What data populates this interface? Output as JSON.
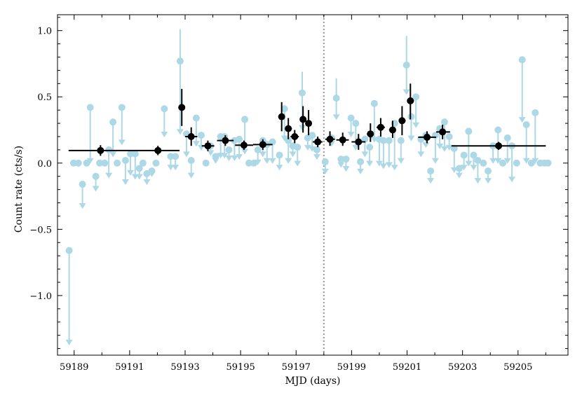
{
  "chart_data": {
    "type": "scatter",
    "title": "",
    "xlabel": "MJD (days)",
    "ylabel": "Count rate (cts/s)",
    "xlim": [
      59188.4,
      59206.8
    ],
    "ylim": [
      -1.45,
      1.12
    ],
    "xticks": [
      59189,
      59191,
      59193,
      59195,
      59197,
      59199,
      59201,
      59203,
      59205
    ],
    "yticks": [
      -1.0,
      -0.5,
      0.0,
      0.5,
      1.0
    ],
    "xtick_labels": [
      "59189",
      "59191",
      "59193",
      "59195",
      "59197",
      "59199",
      "59201",
      "59203",
      "59205"
    ],
    "ytick_labels": [
      "−1.0",
      "−0.5",
      "0.0",
      "0.5",
      "1.0"
    ],
    "vline": {
      "x": 59198.0,
      "style": "dotted",
      "color": "#999999"
    },
    "colors": {
      "fine": "#add8e6",
      "binned": "#000000"
    },
    "series": [
      {
        "role": "fine",
        "points": [
          {
            "x": 59188.82,
            "y": -0.66,
            "lo": -1.37
          },
          {
            "x": 59188.98,
            "y": 0.0
          },
          {
            "x": 59189.15,
            "y": 0.0
          },
          {
            "x": 59189.3,
            "y": -0.16,
            "lo": -0.34
          },
          {
            "x": 59189.45,
            "y": 0.0
          },
          {
            "x": 59189.58,
            "y": 0.42,
            "lo": 0.0
          },
          {
            "x": 59189.78,
            "y": -0.1,
            "lo": -0.21
          },
          {
            "x": 59189.92,
            "y": 0.0
          },
          {
            "x": 59190.1,
            "y": 0.0
          },
          {
            "x": 59190.25,
            "y": 0.1,
            "lo": -0.11
          },
          {
            "x": 59190.4,
            "y": 0.31,
            "lo": 0.05
          },
          {
            "x": 59190.55,
            "y": 0.0
          },
          {
            "x": 59190.72,
            "y": 0.42,
            "lo": 0.14
          },
          {
            "x": 59190.85,
            "y": 0.02,
            "lo": -0.16
          },
          {
            "x": 59191.03,
            "y": 0.07,
            "lo": -0.09
          },
          {
            "x": 59191.2,
            "y": 0.07,
            "lo": -0.12
          },
          {
            "x": 59191.35,
            "y": -0.04,
            "lo": -0.12
          },
          {
            "x": 59191.48,
            "y": 0.0
          },
          {
            "x": 59191.62,
            "y": -0.08,
            "lo": -0.16
          },
          {
            "x": 59191.8,
            "y": -0.06,
            "lo": -0.1
          },
          {
            "x": 59191.95,
            "y": 0.0
          },
          {
            "x": 59192.25,
            "y": 0.41,
            "lo": 0.2
          },
          {
            "x": 59192.48,
            "y": 0.05,
            "lo": -0.05
          },
          {
            "x": 59192.65,
            "y": 0.05,
            "lo": -0.05
          },
          {
            "x": 59192.82,
            "y": 0.77,
            "hi": 1.01,
            "lo": 0.22
          },
          {
            "x": 59193.05,
            "y": 0.22,
            "lo": 0.05
          },
          {
            "x": 59193.22,
            "y": 0.02,
            "lo": -0.11
          },
          {
            "x": 59193.4,
            "y": 0.34,
            "lo": 0.13
          },
          {
            "x": 59193.58,
            "y": 0.21,
            "lo": 0.1
          },
          {
            "x": 59193.75,
            "y": 0.0
          },
          {
            "x": 59193.92,
            "y": 0.13,
            "lo": 0.06
          },
          {
            "x": 59194.1,
            "y": 0.05,
            "lo": 0.0
          },
          {
            "x": 59194.28,
            "y": 0.2,
            "lo": 0.04
          },
          {
            "x": 59194.42,
            "y": 0.2,
            "lo": 0.04
          },
          {
            "x": 59194.58,
            "y": 0.1,
            "lo": 0.02
          },
          {
            "x": 59194.78,
            "y": 0.17,
            "lo": 0.02
          },
          {
            "x": 59194.95,
            "y": 0.18,
            "lo": 0.03
          },
          {
            "x": 59195.15,
            "y": 0.33,
            "lo": 0.07
          },
          {
            "x": 59195.3,
            "y": 0.0
          },
          {
            "x": 59195.48,
            "y": 0.0
          },
          {
            "x": 59195.62,
            "y": 0.1,
            "lo": -0.01
          },
          {
            "x": 59195.8,
            "y": 0.17,
            "lo": 0.05
          },
          {
            "x": 59195.95,
            "y": 0.14,
            "lo": 0.0
          },
          {
            "x": 59196.15,
            "y": 0.16,
            "lo": 0.0
          },
          {
            "x": 59196.4,
            "y": 0.06,
            "lo": -0.05
          },
          {
            "x": 59196.58,
            "y": 0.41,
            "lo": 0.17
          },
          {
            "x": 59196.72,
            "y": 0.17,
            "lo": 0.0
          },
          {
            "x": 59196.88,
            "y": 0.13,
            "lo": 0.05
          },
          {
            "x": 59197.05,
            "y": 0.12,
            "lo": -0.02
          },
          {
            "x": 59197.22,
            "y": 0.53,
            "hi": 0.69,
            "lo": 0.25
          },
          {
            "x": 59197.42,
            "y": 0.19,
            "lo": 0.1
          },
          {
            "x": 59197.58,
            "y": 0.21,
            "lo": 0.09
          },
          {
            "x": 59197.75,
            "y": 0.1,
            "lo": 0.03
          },
          {
            "x": 59198.05,
            "y": 0.01,
            "lo": -0.08
          },
          {
            "x": 59198.28,
            "y": 0.19,
            "lo": 0.13
          },
          {
            "x": 59198.45,
            "y": 0.49,
            "hi": 0.64,
            "lo": 0.33
          },
          {
            "x": 59198.62,
            "y": 0.03,
            "lo": -0.03
          },
          {
            "x": 59198.8,
            "y": 0.03,
            "lo": -0.06
          },
          {
            "x": 59198.98,
            "y": 0.34,
            "lo": 0.2
          },
          {
            "x": 59199.15,
            "y": 0.3,
            "lo": 0.1
          },
          {
            "x": 59199.32,
            "y": 0.01,
            "lo": -0.08
          },
          {
            "x": 59199.48,
            "y": 0.18,
            "lo": 0.05
          },
          {
            "x": 59199.65,
            "y": 0.12,
            "lo": -0.02
          },
          {
            "x": 59199.82,
            "y": 0.45,
            "lo": 0.16
          },
          {
            "x": 59200.0,
            "y": 0.18,
            "lo": -0.02
          },
          {
            "x": 59200.15,
            "y": 0.17,
            "lo": -0.04
          },
          {
            "x": 59200.35,
            "y": 0.17,
            "lo": -0.03
          },
          {
            "x": 59200.55,
            "y": 0.3,
            "lo": -0.05
          },
          {
            "x": 59200.78,
            "y": 0.17,
            "lo": 0.0
          },
          {
            "x": 59200.98,
            "y": 0.74,
            "hi": 0.96,
            "lo": 0.52
          },
          {
            "x": 59201.15,
            "y": 0.35,
            "lo": 0.17
          },
          {
            "x": 59201.32,
            "y": 0.5,
            "lo": 0.27
          },
          {
            "x": 59201.5,
            "y": 0.18,
            "lo": 0.05
          },
          {
            "x": 59201.68,
            "y": 0.21,
            "lo": 0.12
          },
          {
            "x": 59201.85,
            "y": -0.06,
            "lo": -0.15
          },
          {
            "x": 59202.02,
            "y": 0.21,
            "lo": 0.0
          },
          {
            "x": 59202.18,
            "y": 0.26,
            "lo": 0.11
          },
          {
            "x": 59202.35,
            "y": 0.31,
            "lo": 0.09
          },
          {
            "x": 59202.52,
            "y": 0.2,
            "lo": 0.1
          },
          {
            "x": 59202.7,
            "y": 0.11,
            "lo": -0.07
          },
          {
            "x": 59202.88,
            "y": -0.04,
            "lo": -0.11
          },
          {
            "x": 59203.05,
            "y": 0.06,
            "lo": -0.05
          },
          {
            "x": 59203.22,
            "y": 0.24,
            "lo": -0.02
          },
          {
            "x": 59203.4,
            "y": 0.06,
            "lo": -0.05
          },
          {
            "x": 59203.55,
            "y": 0.02,
            "lo": -0.15
          },
          {
            "x": 59203.75,
            "y": 0.0
          },
          {
            "x": 59203.92,
            "y": -0.06,
            "lo": -0.15
          },
          {
            "x": 59204.1,
            "y": 0.13,
            "lo": 0.0
          },
          {
            "x": 59204.28,
            "y": 0.25,
            "lo": 0.0
          },
          {
            "x": 59204.45,
            "y": 0.0
          },
          {
            "x": 59204.62,
            "y": 0.19,
            "lo": 0.0
          },
          {
            "x": 59204.78,
            "y": 0.13,
            "lo": -0.14
          },
          {
            "x": 59204.95,
            "y": 0.0
          },
          {
            "x": 59205.15,
            "y": 0.78,
            "lo": 0.31
          },
          {
            "x": 59205.3,
            "y": 0.29,
            "lo": 0.0
          },
          {
            "x": 59205.48,
            "y": 0.0
          },
          {
            "x": 59205.62,
            "y": 0.38,
            "lo": 0.0
          },
          {
            "x": 59205.8,
            "y": 0.0
          },
          {
            "x": 59205.95,
            "y": 0.0
          },
          {
            "x": 59206.08,
            "y": 0.0
          }
        ]
      },
      {
        "role": "binned",
        "points": [
          {
            "x": 59189.95,
            "y": 0.095,
            "x0": 59188.8,
            "x1": 59192.8,
            "lo": 0.055,
            "hi": 0.135
          },
          {
            "x": 59192.02,
            "y": 0.095,
            "lo": 0.06,
            "hi": 0.13
          },
          {
            "x": 59192.88,
            "y": 0.42,
            "x0": 59192.8,
            "x1": 59192.96,
            "lo": 0.28,
            "hi": 0.56
          },
          {
            "x": 59193.22,
            "y": 0.2,
            "x0": 59193.0,
            "x1": 59193.44,
            "lo": 0.13,
            "hi": 0.27
          },
          {
            "x": 59193.82,
            "y": 0.13,
            "x0": 59193.6,
            "x1": 59194.05,
            "lo": 0.09,
            "hi": 0.17
          },
          {
            "x": 59194.45,
            "y": 0.17,
            "x0": 59194.15,
            "x1": 59194.75,
            "lo": 0.13,
            "hi": 0.21
          },
          {
            "x": 59195.12,
            "y": 0.135,
            "x0": 59194.8,
            "x1": 59195.45,
            "lo": 0.1,
            "hi": 0.17
          },
          {
            "x": 59195.8,
            "y": 0.14,
            "x0": 59195.45,
            "x1": 59196.15,
            "lo": 0.1,
            "hi": 0.18
          },
          {
            "x": 59196.48,
            "y": 0.35,
            "x0": 59196.38,
            "x1": 59196.58,
            "lo": 0.24,
            "hi": 0.46
          },
          {
            "x": 59196.72,
            "y": 0.26,
            "x0": 59196.6,
            "x1": 59196.85,
            "lo": 0.18,
            "hi": 0.34
          },
          {
            "x": 59196.95,
            "y": 0.2,
            "x0": 59196.8,
            "x1": 59197.1,
            "lo": 0.15,
            "hi": 0.25
          },
          {
            "x": 59197.25,
            "y": 0.33,
            "x0": 59197.15,
            "x1": 59197.35,
            "lo": 0.23,
            "hi": 0.43
          },
          {
            "x": 59197.45,
            "y": 0.3,
            "x0": 59197.38,
            "x1": 59197.55,
            "lo": 0.21,
            "hi": 0.4
          },
          {
            "x": 59197.78,
            "y": 0.16,
            "x0": 59197.6,
            "x1": 59197.95,
            "lo": 0.12,
            "hi": 0.2
          },
          {
            "x": 59198.22,
            "y": 0.18,
            "x0": 59198.05,
            "x1": 59198.4,
            "lo": 0.13,
            "hi": 0.24
          },
          {
            "x": 59198.68,
            "y": 0.175,
            "x0": 59198.45,
            "x1": 59198.9,
            "lo": 0.13,
            "hi": 0.23
          },
          {
            "x": 59199.25,
            "y": 0.16,
            "x0": 59199.0,
            "x1": 59199.5,
            "lo": 0.1,
            "hi": 0.22
          },
          {
            "x": 59199.68,
            "y": 0.22,
            "x0": 59199.55,
            "x1": 59199.8,
            "lo": 0.16,
            "hi": 0.3
          },
          {
            "x": 59200.05,
            "y": 0.27,
            "x0": 59199.9,
            "x1": 59200.2,
            "lo": 0.2,
            "hi": 0.34
          },
          {
            "x": 59200.48,
            "y": 0.25,
            "x0": 59200.35,
            "x1": 59200.6,
            "lo": 0.19,
            "hi": 0.32
          },
          {
            "x": 59200.82,
            "y": 0.32,
            "x0": 59200.7,
            "x1": 59200.95,
            "lo": 0.21,
            "hi": 0.43
          },
          {
            "x": 59201.12,
            "y": 0.47,
            "x0": 59201.0,
            "x1": 59201.25,
            "lo": 0.33,
            "hi": 0.6
          },
          {
            "x": 59201.72,
            "y": 0.195,
            "x0": 59201.4,
            "x1": 59202.05,
            "lo": 0.15,
            "hi": 0.24
          },
          {
            "x": 59202.28,
            "y": 0.235,
            "x0": 59202.05,
            "x1": 59202.55,
            "lo": 0.18,
            "hi": 0.29
          },
          {
            "x": 59204.3,
            "y": 0.13,
            "x0": 59202.6,
            "x1": 59206.0,
            "lo": 0.1,
            "hi": 0.16
          }
        ]
      }
    ]
  }
}
